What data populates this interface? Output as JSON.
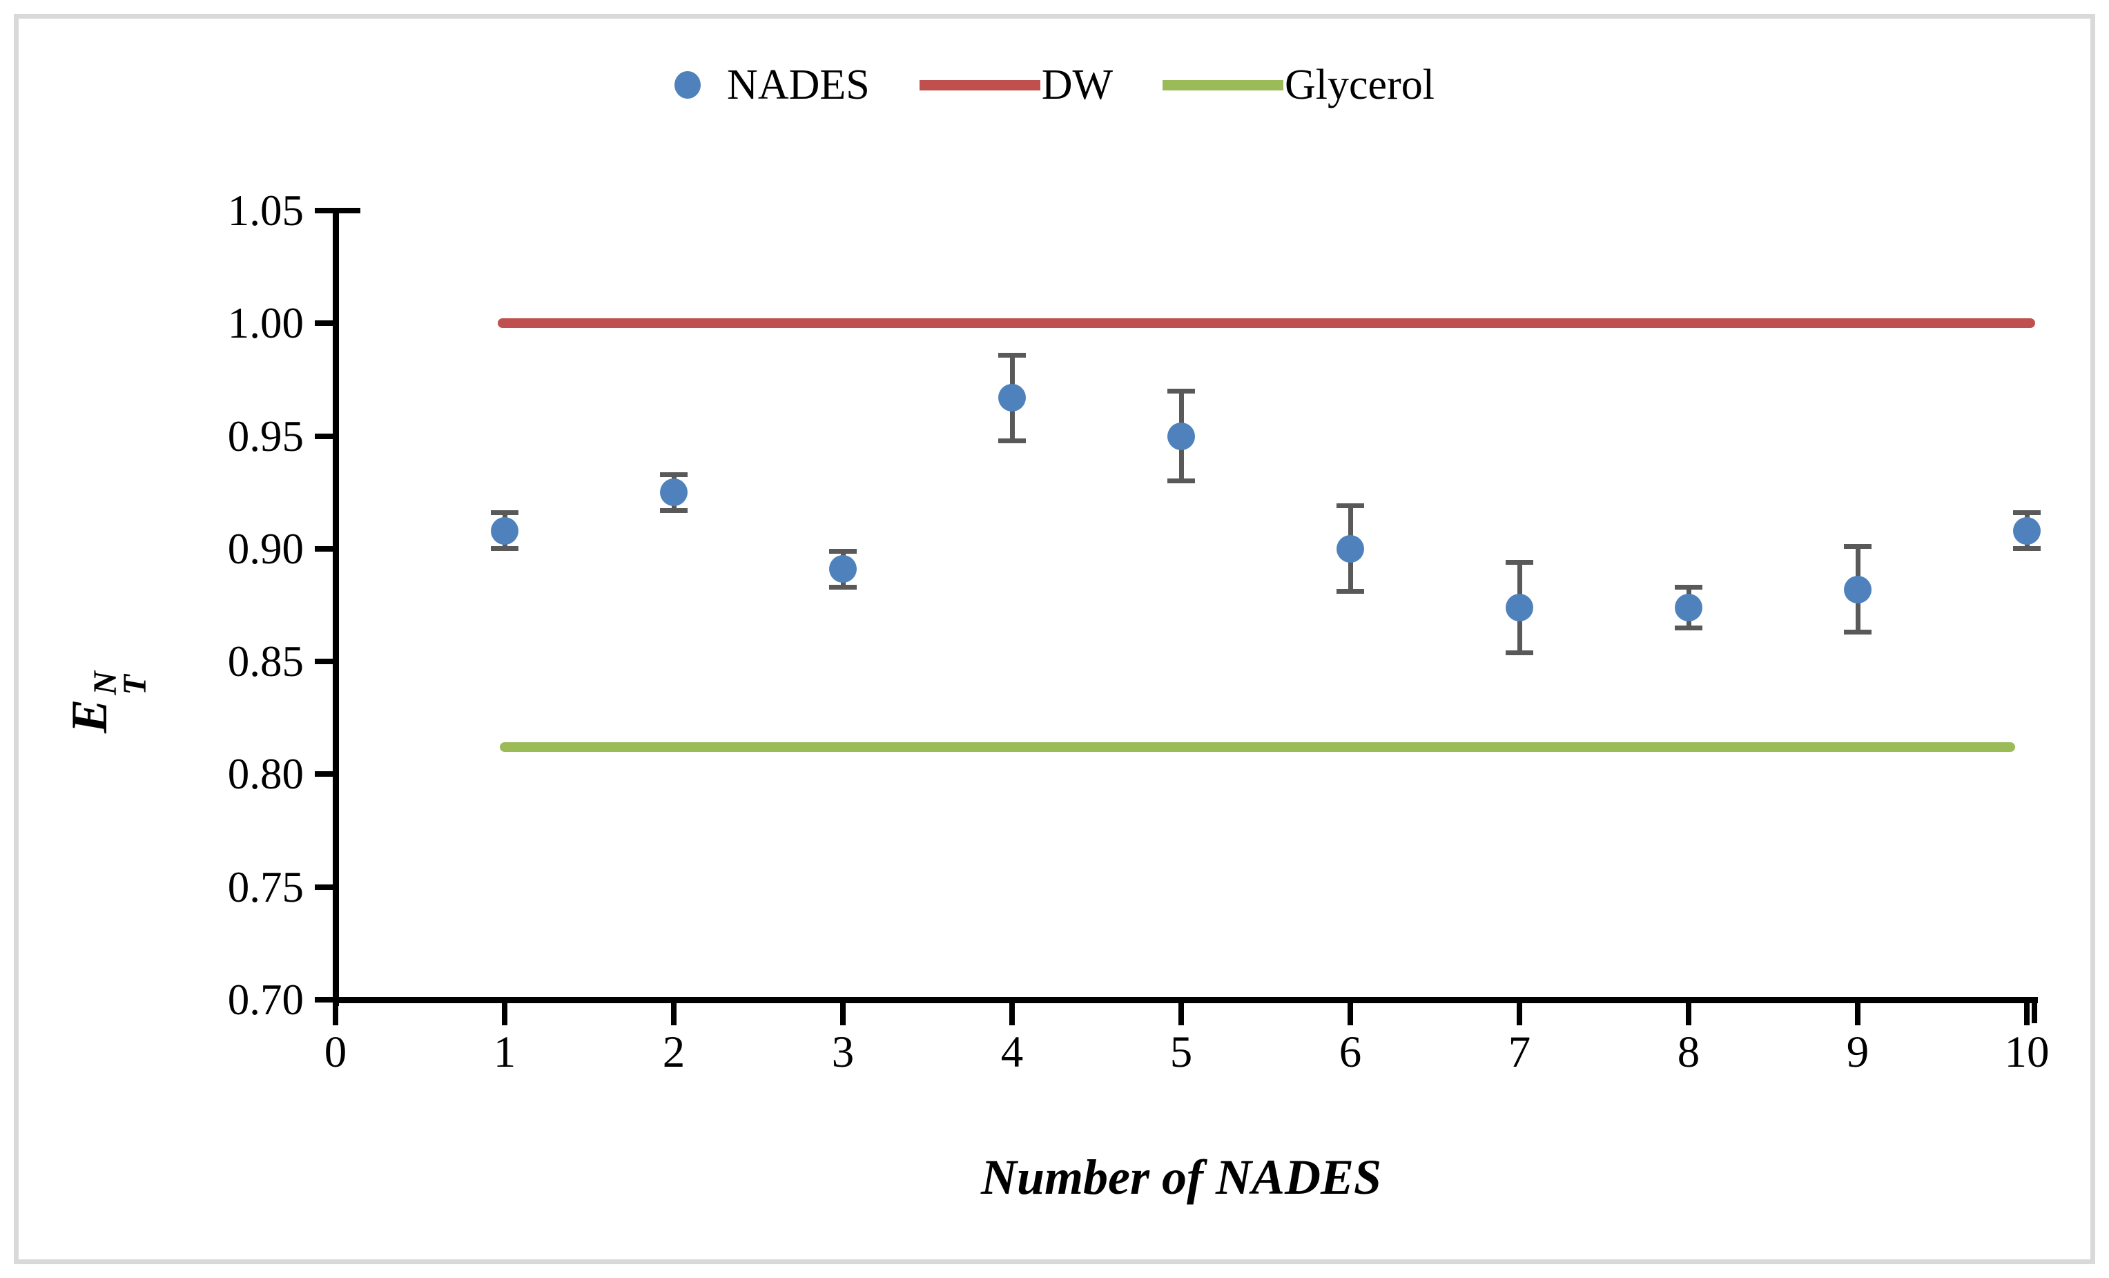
{
  "figure": {
    "background": "#ffffff",
    "frame_border_color": "#d9d9d9"
  },
  "legend": {
    "items": [
      {
        "label": "NADES",
        "marker": "dot",
        "color": "#4f81bd"
      },
      {
        "label": "DW",
        "marker": "line",
        "color": "#c0504d"
      },
      {
        "label": "Glycerol",
        "marker": "line",
        "color": "#9bbb59"
      }
    ]
  },
  "axes": {
    "x_title": "Number of NADES",
    "y_title": {
      "base": "E",
      "sup": "N",
      "sub": "T"
    },
    "y_tick_labels": [
      "1.05",
      "1.00",
      "0.95",
      "0.90",
      "0.85",
      "0.80",
      "0.75",
      "0.70"
    ],
    "x_tick_labels": [
      "0",
      "1",
      "2",
      "3",
      "4",
      "5",
      "6",
      "7",
      "8",
      "9",
      "10"
    ]
  },
  "chart_data": {
    "type": "scatter",
    "title": "",
    "xlabel": "Number of NADES",
    "ylabel": "E_T^N",
    "xlim": [
      0,
      10
    ],
    "ylim": [
      0.7,
      1.05
    ],
    "y_tick_step": 0.05,
    "grid": false,
    "legend_position": "top-center",
    "axis_color": "#000000",
    "error_bar_color": "#595959",
    "series": [
      {
        "name": "NADES",
        "type": "points",
        "color": "#4f81bd",
        "x": [
          1,
          2,
          3,
          4,
          5,
          6,
          7,
          8,
          9,
          10
        ],
        "y": [
          0.908,
          0.925,
          0.891,
          0.967,
          0.95,
          0.9,
          0.874,
          0.874,
          0.882,
          0.908
        ],
        "yerr": [
          0.008,
          0.008,
          0.008,
          0.019,
          0.02,
          0.019,
          0.02,
          0.009,
          0.019,
          0.008
        ]
      },
      {
        "name": "DW",
        "type": "hline",
        "color": "#c0504d",
        "y": 1.0,
        "x_start": 0.96,
        "x_end": 10.05
      },
      {
        "name": "Glycerol",
        "type": "hline",
        "color": "#9bbb59",
        "y": 0.812,
        "x_start": 0.97,
        "x_end": 9.93
      }
    ]
  }
}
